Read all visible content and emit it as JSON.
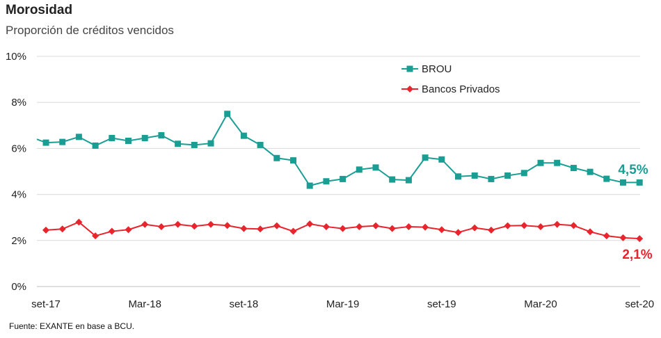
{
  "header": {
    "title": "Morosidad",
    "subtitle": "Proporción de créditos vencidos"
  },
  "source": "Fuente: EXANTE en base a BCU.",
  "chart_data": {
    "type": "line",
    "title": "Morosidad",
    "subtitle": "Proporción de créditos vencidos",
    "ylim": [
      0,
      10
    ],
    "yticks": [
      0,
      2,
      4,
      6,
      8,
      10
    ],
    "ytick_labels": [
      "0%",
      "2%",
      "4%",
      "6%",
      "8%",
      "10%"
    ],
    "xtick_labels": [
      {
        "index": 0,
        "label": "set-17"
      },
      {
        "index": 6,
        "label": "Mar-18"
      },
      {
        "index": 12,
        "label": "set-18"
      },
      {
        "index": 18,
        "label": "Mar-19"
      },
      {
        "index": 24,
        "label": "set-19"
      },
      {
        "index": 30,
        "label": "Mar-20"
      },
      {
        "index": 36,
        "label": "set-20"
      }
    ],
    "x": [
      "set-17",
      "oct-17",
      "nov-17",
      "dic-17",
      "ene-18",
      "feb-18",
      "Mar-18",
      "abr-18",
      "may-18",
      "jun-18",
      "jul-18",
      "ago-18",
      "set-18",
      "oct-18",
      "nov-18",
      "dic-18",
      "ene-19",
      "feb-19",
      "Mar-19",
      "abr-19",
      "may-19",
      "jun-19",
      "jul-19",
      "ago-19",
      "set-19",
      "oct-19",
      "nov-19",
      "dic-19",
      "ene-20",
      "feb-20",
      "Mar-20",
      "abr-20",
      "may-20",
      "jun-20",
      "jul-20",
      "ago-20",
      "set-20"
    ],
    "series": [
      {
        "name": "BROU",
        "color": "#1a9e94",
        "marker": "square",
        "start_value": 6.4,
        "values": [
          6.25,
          6.28,
          6.5,
          6.12,
          6.45,
          6.33,
          6.45,
          6.57,
          6.2,
          6.15,
          6.22,
          7.5,
          6.55,
          6.15,
          5.58,
          5.48,
          4.38,
          4.57,
          4.67,
          5.08,
          5.17,
          4.65,
          4.62,
          5.6,
          5.52,
          4.78,
          4.82,
          4.67,
          4.82,
          4.93,
          5.37,
          5.37,
          5.15,
          4.98,
          4.68,
          4.52,
          4.52
        ]
      },
      {
        "name": "Bancos Privados",
        "color": "#e8242c",
        "marker": "diamond",
        "values": [
          2.45,
          2.5,
          2.8,
          2.2,
          2.4,
          2.47,
          2.7,
          2.6,
          2.7,
          2.62,
          2.7,
          2.65,
          2.52,
          2.5,
          2.64,
          2.4,
          2.72,
          2.6,
          2.52,
          2.6,
          2.64,
          2.52,
          2.6,
          2.58,
          2.47,
          2.35,
          2.55,
          2.45,
          2.64,
          2.65,
          2.6,
          2.7,
          2.65,
          2.38,
          2.2,
          2.12,
          2.08
        ]
      }
    ],
    "legend": "top-center",
    "grid": true,
    "end_labels": [
      {
        "series": "BROU",
        "text": "4,5%",
        "color": "#1a9e94"
      },
      {
        "series": "Bancos Privados",
        "text": "2,1%",
        "color": "#e8242c"
      }
    ]
  }
}
